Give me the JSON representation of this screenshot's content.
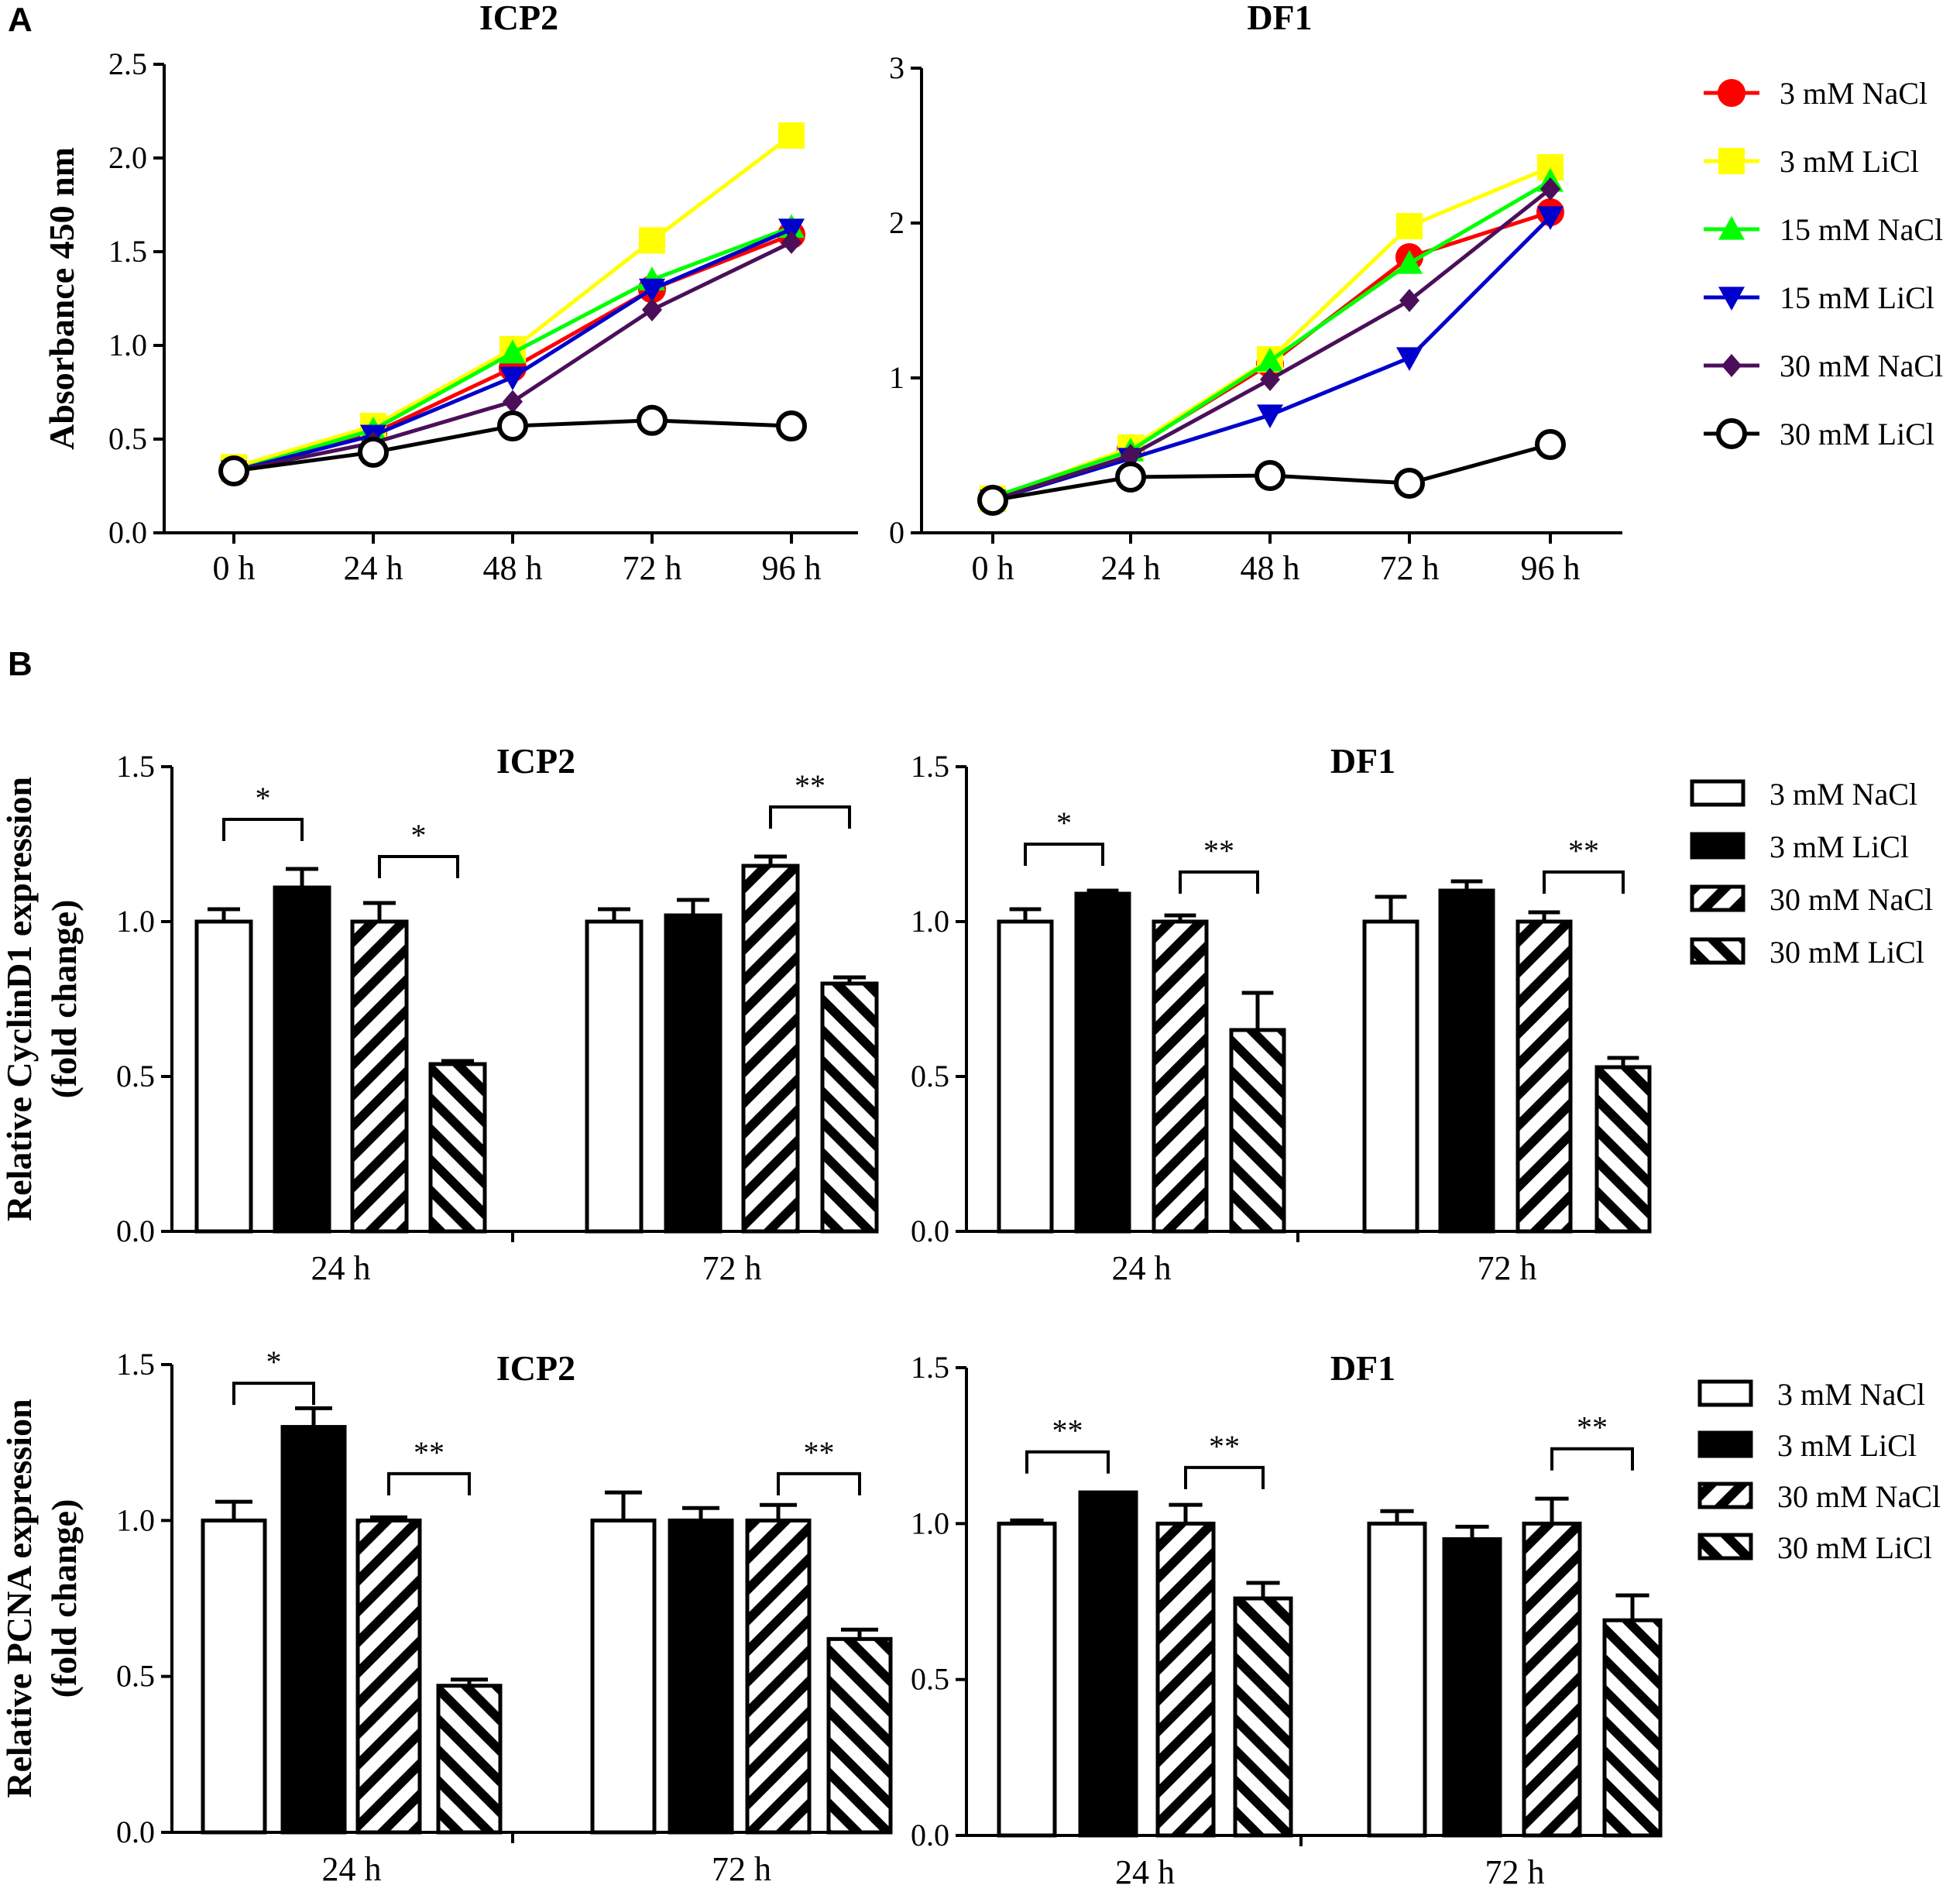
{
  "figure": {
    "panel_a_label": "A",
    "panel_b_label": "B"
  },
  "legend_a": [
    {
      "label": "3 mM NaCl",
      "color": "#ff0000",
      "marker": "circle"
    },
    {
      "label": "3 mM LiCl",
      "color": "#ffff00",
      "marker": "square"
    },
    {
      "label": "15 mM NaCl",
      "color": "#00ff00",
      "marker": "triangle-up"
    },
    {
      "label": "15 mM LiCl",
      "color": "#0000cc",
      "marker": "triangle-down"
    },
    {
      "label": "30 mM NaCl",
      "color": "#4b0f5a",
      "marker": "diamond"
    },
    {
      "label": "30 mM LiCl",
      "color": "#000000",
      "marker": "open-circle"
    }
  ],
  "legend_b": [
    {
      "label": "3 mM NaCl",
      "fill": "white"
    },
    {
      "label": "3 mM LiCl",
      "fill": "black"
    },
    {
      "label": "30 mM NaCl",
      "fill": "hatch-up"
    },
    {
      "label": "30 mM LiCl",
      "fill": "hatch-down"
    }
  ],
  "chart_data": [
    {
      "id": "a-icp2",
      "type": "line",
      "title": "ICP2",
      "ylabel": "Absorbance 450 nm",
      "ylim": [
        0,
        2.5
      ],
      "yticks": [
        "0.0",
        "0.5",
        "1.0",
        "1.5",
        "2.0",
        "2.5"
      ],
      "categories": [
        "0 h",
        "24 h",
        "48 h",
        "72 h",
        "96 h"
      ],
      "series": [
        {
          "name": "3 mM NaCl",
          "values": [
            0.34,
            0.53,
            0.88,
            1.3,
            1.59
          ]
        },
        {
          "name": "3 mM LiCl",
          "values": [
            0.35,
            0.57,
            0.98,
            1.56,
            2.12
          ]
        },
        {
          "name": "15 mM NaCl",
          "values": [
            0.33,
            0.55,
            0.96,
            1.35,
            1.63
          ]
        },
        {
          "name": "15 mM LiCl",
          "values": [
            0.33,
            0.52,
            0.83,
            1.3,
            1.62
          ]
        },
        {
          "name": "30 mM NaCl",
          "values": [
            0.33,
            0.48,
            0.7,
            1.19,
            1.55
          ]
        },
        {
          "name": "30 mM LiCl",
          "values": [
            0.33,
            0.43,
            0.57,
            0.6,
            0.57
          ]
        }
      ]
    },
    {
      "id": "a-df1",
      "type": "line",
      "title": "DF1",
      "ylabel": "",
      "ylim": [
        0,
        3
      ],
      "yticks": [
        "0",
        "1",
        "2",
        "3"
      ],
      "categories": [
        "0 h",
        "24 h",
        "48 h",
        "72 h",
        "96 h"
      ],
      "series": [
        {
          "name": "3 mM NaCl",
          "values": [
            0.21,
            0.54,
            1.09,
            1.78,
            2.07
          ]
        },
        {
          "name": "3 mM LiCl",
          "values": [
            0.22,
            0.55,
            1.12,
            1.98,
            2.36
          ]
        },
        {
          "name": "15 mM NaCl",
          "values": [
            0.23,
            0.53,
            1.11,
            1.74,
            2.27
          ]
        },
        {
          "name": "15 mM LiCl",
          "values": [
            0.21,
            0.48,
            0.76,
            1.13,
            2.04
          ]
        },
        {
          "name": "30 mM NaCl",
          "values": [
            0.21,
            0.5,
            0.99,
            1.5,
            2.22
          ]
        },
        {
          "name": "30 mM LiCl",
          "values": [
            0.21,
            0.36,
            0.37,
            0.32,
            0.57
          ]
        }
      ]
    },
    {
      "id": "b-cyclin-icp2",
      "type": "bar",
      "title": "ICP2",
      "ylabel": "Relative CyclinD1 expression (fold change)",
      "ylim": [
        0,
        1.5
      ],
      "yticks": [
        "0.0",
        "0.5",
        "1.0",
        "1.5"
      ],
      "groups": [
        "24 h",
        "72 h"
      ],
      "series_names": [
        "3 mM NaCl",
        "3 mM LiCl",
        "30 mM NaCl",
        "30 mM LiCl"
      ],
      "values": [
        [
          1.0,
          1.11,
          1.0,
          0.54
        ],
        [
          1.0,
          1.02,
          1.18,
          0.8
        ]
      ],
      "errors": [
        [
          0.04,
          0.06,
          0.06,
          0.01
        ],
        [
          0.04,
          0.05,
          0.03,
          0.02
        ]
      ],
      "significance": [
        {
          "group": 0,
          "from": 0,
          "to": 1,
          "label": "*",
          "y": 1.33
        },
        {
          "group": 0,
          "from": 2,
          "to": 3,
          "label": "*",
          "y": 1.21
        },
        {
          "group": 1,
          "from": 2,
          "to": 3,
          "label": "**",
          "y": 1.37
        }
      ]
    },
    {
      "id": "b-cyclin-df1",
      "type": "bar",
      "title": "DF1",
      "ylabel": "",
      "ylim": [
        0,
        1.5
      ],
      "yticks": [
        "0.0",
        "0.5",
        "1.0",
        "1.5"
      ],
      "groups": [
        "24 h",
        "72 h"
      ],
      "series_names": [
        "3 mM NaCl",
        "3 mM LiCl",
        "30 mM NaCl",
        "30 mM LiCl"
      ],
      "values": [
        [
          1.0,
          1.09,
          1.0,
          0.65
        ],
        [
          1.0,
          1.1,
          1.0,
          0.53
        ]
      ],
      "errors": [
        [
          0.04,
          0.01,
          0.02,
          0.12
        ],
        [
          0.08,
          0.03,
          0.03,
          0.03
        ]
      ],
      "significance": [
        {
          "group": 0,
          "from": 0,
          "to": 1,
          "label": "*",
          "y": 1.25
        },
        {
          "group": 0,
          "from": 2,
          "to": 3,
          "label": "**",
          "y": 1.16
        },
        {
          "group": 1,
          "from": 2,
          "to": 3,
          "label": "**",
          "y": 1.16
        }
      ]
    },
    {
      "id": "b-pcna-icp2",
      "type": "bar",
      "title": "ICP2",
      "ylabel": "Relative PCNA expression (fold change)",
      "ylim": [
        0,
        1.5
      ],
      "yticks": [
        "0.0",
        "0.5",
        "1.0",
        "1.5"
      ],
      "groups": [
        "24 h",
        "72 h"
      ],
      "series_names": [
        "3 mM NaCl",
        "3 mM LiCl",
        "30 mM NaCl",
        "30 mM LiCl"
      ],
      "values": [
        [
          1.0,
          1.3,
          1.0,
          0.47
        ],
        [
          1.0,
          1.0,
          1.0,
          0.62
        ]
      ],
      "errors": [
        [
          0.06,
          0.06,
          0.01,
          0.02
        ],
        [
          0.09,
          0.04,
          0.05,
          0.03
        ]
      ],
      "significance": [
        {
          "group": 0,
          "from": 0,
          "to": 1,
          "label": "*",
          "y": 1.44
        },
        {
          "group": 0,
          "from": 2,
          "to": 3,
          "label": "**",
          "y": 1.15
        },
        {
          "group": 1,
          "from": 2,
          "to": 3,
          "label": "**",
          "y": 1.15
        }
      ]
    },
    {
      "id": "b-pcna-df1",
      "type": "bar",
      "title": "DF1",
      "ylabel": "",
      "ylim": [
        0,
        1.5
      ],
      "yticks": [
        "0.0",
        "0.5",
        "1.0",
        "1.5"
      ],
      "groups": [
        "24 h",
        "72 h"
      ],
      "series_names": [
        "3 mM NaCl",
        "3 mM LiCl",
        "30 mM NaCl",
        "30 mM LiCl"
      ],
      "values": [
        [
          1.0,
          1.1,
          1.0,
          0.76
        ],
        [
          1.0,
          0.95,
          1.0,
          0.69
        ]
      ],
      "errors": [
        [
          0.01,
          0.0,
          0.06,
          0.05
        ],
        [
          0.04,
          0.04,
          0.08,
          0.08
        ]
      ],
      "significance": [
        {
          "group": 0,
          "from": 0,
          "to": 1,
          "label": "**",
          "y": 1.23
        },
        {
          "group": 0,
          "from": 2,
          "to": 3,
          "label": "**",
          "y": 1.18
        },
        {
          "group": 1,
          "from": 2,
          "to": 3,
          "label": "**",
          "y": 1.24
        }
      ]
    }
  ]
}
